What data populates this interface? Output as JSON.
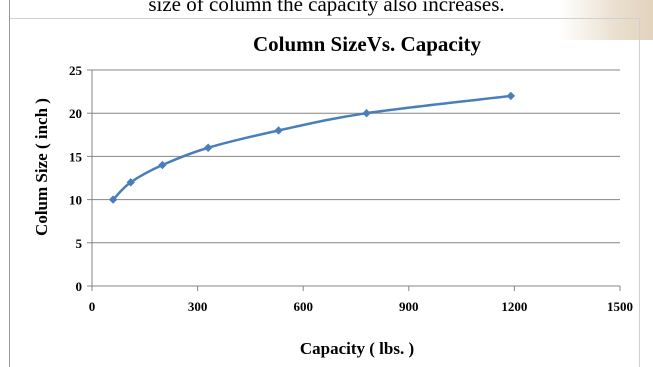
{
  "page": {
    "top_text": "size of column the capacity also increases."
  },
  "chart_data": {
    "type": "line",
    "title": "Column SizeVs. Capacity",
    "xlabel": "Capacity ( lbs. )",
    "ylabel": "Colum Size ( inch )",
    "xlim": [
      0,
      1500
    ],
    "ylim": [
      0,
      25
    ],
    "x_ticks": [
      "0",
      "300",
      "600",
      "900",
      "1200",
      "1500"
    ],
    "y_ticks": [
      "0",
      "5",
      "10",
      "15",
      "20",
      "25"
    ],
    "grid": "horizontal",
    "series": [
      {
        "x": [
          60,
          110,
          200,
          330,
          530,
          780,
          1190
        ],
        "y": [
          10,
          12,
          14,
          16,
          18,
          20,
          22
        ]
      }
    ],
    "colors": {
      "series": "#4a7ebb",
      "grid": "#868686"
    }
  }
}
